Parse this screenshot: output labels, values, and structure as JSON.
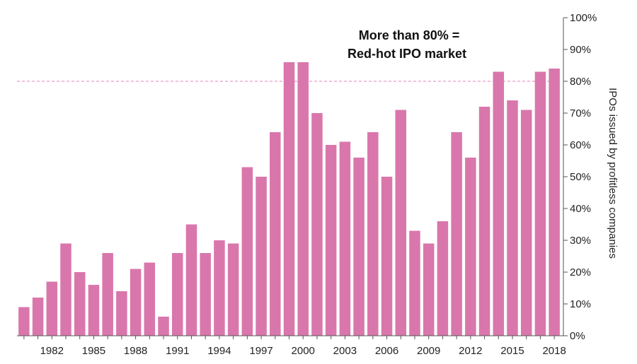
{
  "chart_data": {
    "type": "bar",
    "title": "",
    "xlabel": "",
    "ylabel": "IPOs issued by profitless companies",
    "ylim": [
      0,
      100
    ],
    "y_ticks": [
      "0%",
      "10%",
      "20%",
      "30%",
      "40%",
      "50%",
      "60%",
      "70%",
      "80%",
      "90%",
      "100%"
    ],
    "y_axis_side": "right",
    "x_tick_labels": [
      "1982",
      "1985",
      "1988",
      "1991",
      "1994",
      "1997",
      "2000",
      "2003",
      "2006",
      "2009",
      "2012",
      "2015",
      "2018"
    ],
    "categories": [
      1980,
      1981,
      1982,
      1983,
      1984,
      1985,
      1986,
      1987,
      1988,
      1989,
      1990,
      1991,
      1992,
      1993,
      1994,
      1995,
      1996,
      1997,
      1998,
      1999,
      2000,
      2001,
      2002,
      2003,
      2004,
      2005,
      2006,
      2007,
      2008,
      2009,
      2010,
      2011,
      2012,
      2013,
      2014,
      2015,
      2016,
      2017,
      2018
    ],
    "values": [
      9,
      12,
      17,
      29,
      20,
      16,
      26,
      14,
      21,
      23,
      6,
      26,
      35,
      26,
      30,
      29,
      53,
      50,
      64,
      86,
      86,
      70,
      60,
      61,
      56,
      64,
      50,
      71,
      33,
      29,
      36,
      64,
      56,
      72,
      83,
      74,
      71,
      83,
      84
    ],
    "bar_color": "#d977ac",
    "reference_line": {
      "value": 80,
      "color": "#e99acb",
      "style": "dashed"
    },
    "annotation": {
      "line1": "More than 80% =",
      "line2": "Red-hot IPO market"
    },
    "grid": false,
    "legend": "none"
  }
}
